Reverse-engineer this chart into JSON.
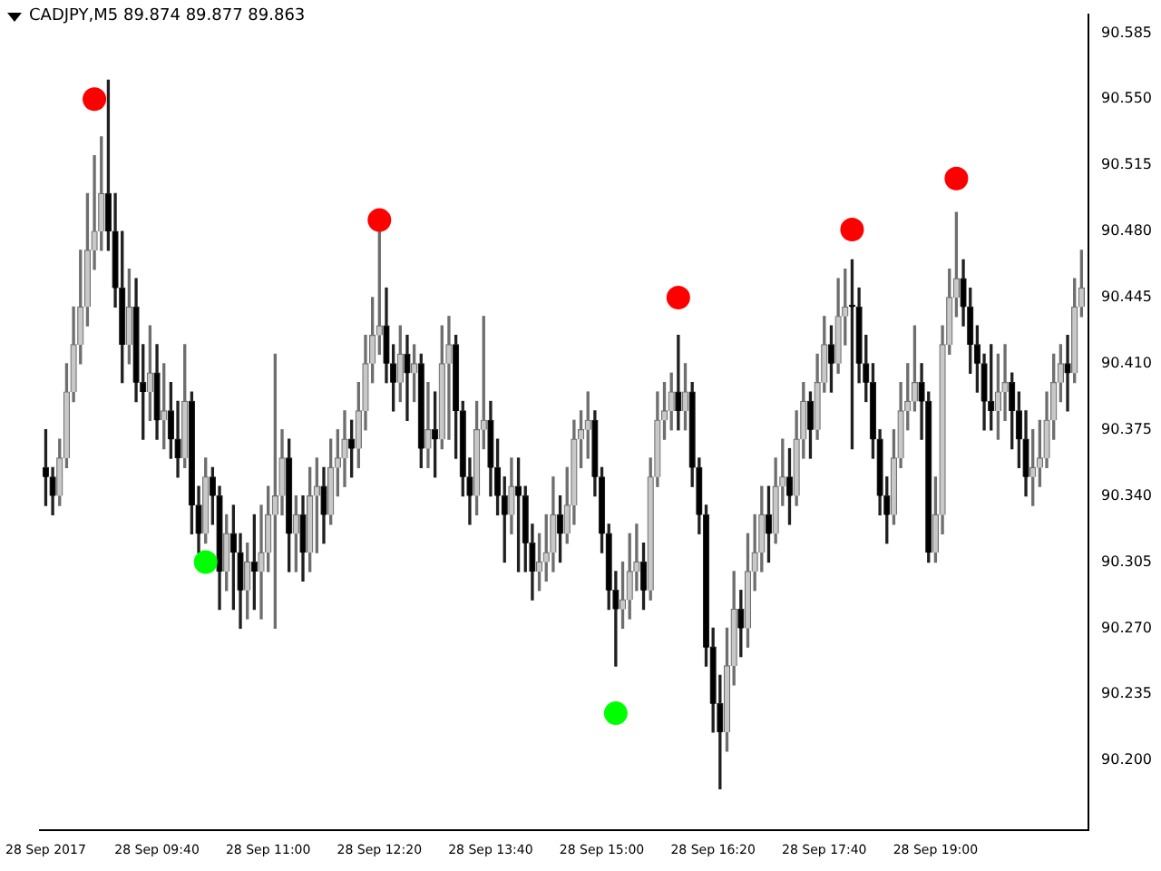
{
  "chart_data": {
    "type": "candlestick",
    "title": "CADJPY,M5  89.874 89.877 89.863",
    "x": [
      "2017-09-28T08:20",
      "2017-09-28T08:25",
      "2017-09-28T08:30",
      "2017-09-28T08:35",
      "2017-09-28T08:40",
      "2017-09-28T08:45",
      "2017-09-28T08:50",
      "2017-09-28T08:55",
      "2017-09-28T09:00",
      "2017-09-28T09:05",
      "2017-09-28T09:10",
      "2017-09-28T09:15",
      "2017-09-28T09:20",
      "2017-09-28T09:25",
      "2017-09-28T09:30",
      "2017-09-28T09:35",
      "2017-09-28T09:40",
      "2017-09-28T09:45",
      "2017-09-28T09:50",
      "2017-09-28T09:55",
      "2017-09-28T10:00",
      "2017-09-28T10:05",
      "2017-09-28T10:10",
      "2017-09-28T10:15",
      "2017-09-28T10:20",
      "2017-09-28T10:25",
      "2017-09-28T10:30",
      "2017-09-28T10:35",
      "2017-09-28T10:40",
      "2017-09-28T10:45",
      "2017-09-28T10:50",
      "2017-09-28T10:55",
      "2017-09-28T11:00",
      "2017-09-28T11:05",
      "2017-09-28T11:10",
      "2017-09-28T11:15",
      "2017-09-28T11:20",
      "2017-09-28T11:25",
      "2017-09-28T11:30",
      "2017-09-28T11:35",
      "2017-09-28T11:40",
      "2017-09-28T11:45",
      "2017-09-28T11:50",
      "2017-09-28T11:55",
      "2017-09-28T12:00",
      "2017-09-28T12:05",
      "2017-09-28T12:10",
      "2017-09-28T12:15",
      "2017-09-28T12:20",
      "2017-09-28T12:25",
      "2017-09-28T12:30",
      "2017-09-28T12:35",
      "2017-09-28T12:40",
      "2017-09-28T12:45",
      "2017-09-28T12:50",
      "2017-09-28T12:55",
      "2017-09-28T13:00",
      "2017-09-28T13:05",
      "2017-09-28T13:10",
      "2017-09-28T13:15",
      "2017-09-28T13:20",
      "2017-09-28T13:25",
      "2017-09-28T13:30",
      "2017-09-28T13:35",
      "2017-09-28T13:40",
      "2017-09-28T13:45",
      "2017-09-28T13:50",
      "2017-09-28T13:55",
      "2017-09-28T14:00",
      "2017-09-28T14:05",
      "2017-09-28T14:10",
      "2017-09-28T14:15",
      "2017-09-28T14:20",
      "2017-09-28T14:25",
      "2017-09-28T14:30",
      "2017-09-28T14:35",
      "2017-09-28T14:40",
      "2017-09-28T14:45",
      "2017-09-28T14:50",
      "2017-09-28T14:55",
      "2017-09-28T15:00",
      "2017-09-28T15:05",
      "2017-09-28T15:10",
      "2017-09-28T15:15",
      "2017-09-28T15:20",
      "2017-09-28T15:25",
      "2017-09-28T15:30",
      "2017-09-28T15:35",
      "2017-09-28T15:40",
      "2017-09-28T15:45",
      "2017-09-28T15:50",
      "2017-09-28T15:55",
      "2017-09-28T16:00",
      "2017-09-28T16:05",
      "2017-09-28T16:10",
      "2017-09-28T16:15",
      "2017-09-28T16:20",
      "2017-09-28T16:25",
      "2017-09-28T16:30",
      "2017-09-28T16:35",
      "2017-09-28T16:40",
      "2017-09-28T16:45",
      "2017-09-28T16:50",
      "2017-09-28T16:55",
      "2017-09-28T17:00",
      "2017-09-28T17:05",
      "2017-09-28T17:10",
      "2017-09-28T17:15",
      "2017-09-28T17:20",
      "2017-09-28T17:25",
      "2017-09-28T17:30",
      "2017-09-28T17:35",
      "2017-09-28T17:40",
      "2017-09-28T17:45",
      "2017-09-28T17:50",
      "2017-09-28T17:55",
      "2017-09-28T18:00",
      "2017-09-28T18:05",
      "2017-09-28T18:10",
      "2017-09-28T18:15",
      "2017-09-28T18:20",
      "2017-09-28T18:25",
      "2017-09-28T18:30",
      "2017-09-28T18:35",
      "2017-09-28T18:40",
      "2017-09-28T18:45",
      "2017-09-28T18:50",
      "2017-09-28T18:55",
      "2017-09-28T19:00",
      "2017-09-28T19:05",
      "2017-09-28T19:10",
      "2017-09-28T19:15",
      "2017-09-28T19:20",
      "2017-09-28T19:25",
      "2017-09-28T19:30",
      "2017-09-28T19:35",
      "2017-09-28T19:40",
      "2017-09-28T19:45",
      "2017-09-28T19:50",
      "2017-09-28T19:55",
      "2017-09-28T20:00",
      "2017-09-28T20:05",
      "2017-09-28T20:10",
      "2017-09-28T20:15",
      "2017-09-28T20:20",
      "2017-09-28T20:25",
      "2017-09-28T20:30",
      "2017-09-28T20:35",
      "2017-09-28T20:40",
      "2017-09-28T20:45"
    ],
    "ohlc": [
      [
        90.355,
        90.375,
        90.335,
        90.35
      ],
      [
        90.35,
        90.355,
        90.33,
        90.34
      ],
      [
        90.34,
        90.37,
        90.335,
        90.36
      ],
      [
        90.36,
        90.41,
        90.355,
        90.395
      ],
      [
        90.395,
        90.44,
        90.39,
        90.42
      ],
      [
        90.42,
        90.47,
        90.41,
        90.44
      ],
      [
        90.44,
        90.5,
        90.43,
        90.47
      ],
      [
        90.47,
        90.52,
        90.46,
        90.48
      ],
      [
        90.48,
        90.53,
        90.47,
        90.5
      ],
      [
        90.5,
        90.56,
        90.47,
        90.48
      ],
      [
        90.48,
        90.5,
        90.44,
        90.45
      ],
      [
        90.45,
        90.48,
        90.4,
        90.42
      ],
      [
        90.42,
        90.46,
        90.41,
        90.44
      ],
      [
        90.44,
        90.455,
        90.39,
        90.4
      ],
      [
        90.4,
        90.42,
        90.37,
        90.395
      ],
      [
        90.395,
        90.43,
        90.38,
        90.405
      ],
      [
        90.405,
        90.42,
        90.37,
        90.38
      ],
      [
        90.38,
        90.41,
        90.365,
        90.385
      ],
      [
        90.385,
        90.4,
        90.36,
        90.37
      ],
      [
        90.37,
        90.39,
        90.35,
        90.36
      ],
      [
        90.36,
        90.42,
        90.355,
        90.39
      ],
      [
        90.39,
        90.395,
        90.32,
        90.335
      ],
      [
        90.335,
        90.345,
        90.31,
        90.32
      ],
      [
        90.32,
        90.36,
        90.315,
        90.35
      ],
      [
        90.35,
        90.355,
        90.325,
        90.34
      ],
      [
        90.34,
        90.345,
        90.28,
        90.3
      ],
      [
        90.3,
        90.33,
        90.29,
        90.32
      ],
      [
        90.32,
        90.335,
        90.28,
        90.31
      ],
      [
        90.31,
        90.32,
        90.27,
        90.29
      ],
      [
        90.29,
        90.315,
        90.275,
        90.305
      ],
      [
        90.305,
        90.33,
        90.28,
        90.3
      ],
      [
        90.3,
        90.335,
        90.275,
        90.31
      ],
      [
        90.31,
        90.345,
        90.3,
        90.33
      ],
      [
        90.33,
        90.415,
        90.27,
        90.34
      ],
      [
        90.34,
        90.375,
        90.33,
        90.36
      ],
      [
        90.36,
        90.37,
        90.3,
        90.32
      ],
      [
        90.32,
        90.34,
        90.3,
        90.33
      ],
      [
        90.33,
        90.34,
        90.295,
        90.31
      ],
      [
        90.31,
        90.355,
        90.3,
        90.34
      ],
      [
        90.34,
        90.36,
        90.31,
        90.345
      ],
      [
        90.345,
        90.355,
        90.315,
        90.33
      ],
      [
        90.33,
        90.37,
        90.325,
        90.355
      ],
      [
        90.355,
        90.375,
        90.34,
        90.36
      ],
      [
        90.36,
        90.385,
        90.345,
        90.37
      ],
      [
        90.37,
        90.38,
        90.35,
        90.365
      ],
      [
        90.365,
        90.4,
        90.355,
        90.385
      ],
      [
        90.385,
        90.425,
        90.375,
        90.41
      ],
      [
        90.41,
        90.445,
        90.4,
        90.425
      ],
      [
        90.425,
        90.48,
        90.415,
        90.43
      ],
      [
        90.43,
        90.45,
        90.4,
        90.41
      ],
      [
        90.41,
        90.42,
        90.385,
        90.4
      ],
      [
        90.4,
        90.43,
        90.39,
        90.415
      ],
      [
        90.415,
        90.425,
        90.38,
        90.405
      ],
      [
        90.405,
        90.42,
        90.39,
        90.41
      ],
      [
        90.41,
        90.415,
        90.355,
        90.365
      ],
      [
        90.365,
        90.4,
        90.355,
        90.375
      ],
      [
        90.375,
        90.395,
        90.35,
        90.37
      ],
      [
        90.37,
        90.43,
        90.365,
        90.41
      ],
      [
        90.41,
        90.435,
        90.37,
        90.42
      ],
      [
        90.42,
        90.425,
        90.36,
        90.385
      ],
      [
        90.385,
        90.39,
        90.34,
        90.35
      ],
      [
        90.35,
        90.36,
        90.325,
        90.34
      ],
      [
        90.34,
        90.39,
        90.33,
        90.375
      ],
      [
        90.375,
        90.435,
        90.365,
        90.38
      ],
      [
        90.38,
        90.39,
        90.34,
        90.355
      ],
      [
        90.355,
        90.37,
        90.33,
        90.34
      ],
      [
        90.34,
        90.35,
        90.305,
        90.33
      ],
      [
        90.33,
        90.36,
        90.32,
        90.345
      ],
      [
        90.345,
        90.36,
        90.3,
        90.34
      ],
      [
        90.34,
        90.345,
        90.3,
        90.315
      ],
      [
        90.315,
        90.325,
        90.285,
        90.3
      ],
      [
        90.3,
        90.32,
        90.29,
        90.305
      ],
      [
        90.305,
        90.33,
        90.295,
        90.31
      ],
      [
        90.31,
        90.35,
        90.3,
        90.33
      ],
      [
        90.33,
        90.34,
        90.305,
        90.32
      ],
      [
        90.32,
        90.355,
        90.315,
        90.335
      ],
      [
        90.335,
        90.38,
        90.325,
        90.37
      ],
      [
        90.37,
        90.385,
        90.355,
        90.375
      ],
      [
        90.375,
        90.395,
        90.36,
        90.38
      ],
      [
        90.38,
        90.385,
        90.34,
        90.35
      ],
      [
        90.35,
        90.355,
        90.31,
        90.32
      ],
      [
        90.32,
        90.325,
        90.28,
        90.29
      ],
      [
        90.29,
        90.3,
        90.25,
        90.28
      ],
      [
        90.28,
        90.305,
        90.27,
        90.285
      ],
      [
        90.285,
        90.32,
        90.275,
        90.3
      ],
      [
        90.3,
        90.325,
        90.29,
        90.305
      ],
      [
        90.305,
        90.315,
        90.28,
        90.29
      ],
      [
        90.29,
        90.36,
        90.285,
        90.35
      ],
      [
        90.35,
        90.395,
        90.345,
        90.38
      ],
      [
        90.38,
        90.4,
        90.37,
        90.385
      ],
      [
        90.385,
        90.405,
        90.375,
        90.395
      ],
      [
        90.395,
        90.425,
        90.375,
        90.385
      ],
      [
        90.385,
        90.41,
        90.375,
        90.395
      ],
      [
        90.395,
        90.4,
        90.345,
        90.355
      ],
      [
        90.355,
        90.36,
        90.32,
        90.33
      ],
      [
        90.33,
        90.335,
        90.25,
        90.26
      ],
      [
        90.26,
        90.27,
        90.215,
        90.23
      ],
      [
        90.23,
        90.245,
        90.185,
        90.215
      ],
      [
        90.215,
        90.27,
        90.205,
        90.25
      ],
      [
        90.25,
        90.3,
        90.24,
        90.28
      ],
      [
        90.28,
        90.29,
        90.255,
        90.27
      ],
      [
        90.27,
        90.32,
        90.26,
        90.3
      ],
      [
        90.3,
        90.33,
        90.29,
        90.31
      ],
      [
        90.31,
        90.345,
        90.3,
        90.33
      ],
      [
        90.33,
        90.345,
        90.305,
        90.32
      ],
      [
        90.32,
        90.36,
        90.315,
        90.345
      ],
      [
        90.345,
        90.37,
        90.335,
        90.35
      ],
      [
        90.35,
        90.365,
        90.325,
        90.34
      ],
      [
        90.34,
        90.385,
        90.335,
        90.37
      ],
      [
        90.37,
        90.4,
        90.36,
        90.39
      ],
      [
        90.39,
        90.395,
        90.36,
        90.375
      ],
      [
        90.375,
        90.415,
        90.37,
        90.4
      ],
      [
        90.4,
        90.435,
        90.395,
        90.42
      ],
      [
        90.42,
        90.43,
        90.395,
        90.41
      ],
      [
        90.41,
        90.455,
        90.405,
        90.435
      ],
      [
        90.435,
        90.46,
        90.42,
        90.44
      ],
      [
        90.44,
        90.465,
        90.365,
        90.44
      ],
      [
        90.44,
        90.45,
        90.4,
        90.41
      ],
      [
        90.41,
        90.425,
        90.39,
        90.4
      ],
      [
        90.4,
        90.41,
        90.36,
        90.37
      ],
      [
        90.37,
        90.375,
        90.33,
        90.34
      ],
      [
        90.34,
        90.35,
        90.315,
        90.33
      ],
      [
        90.33,
        90.375,
        90.325,
        90.36
      ],
      [
        90.36,
        90.4,
        90.355,
        90.385
      ],
      [
        90.385,
        90.41,
        90.375,
        90.39
      ],
      [
        90.39,
        90.43,
        90.385,
        90.4
      ],
      [
        90.4,
        90.41,
        90.37,
        90.39
      ],
      [
        90.39,
        90.395,
        90.305,
        90.31
      ],
      [
        90.31,
        90.35,
        90.305,
        90.33
      ],
      [
        90.33,
        90.43,
        90.32,
        90.42
      ],
      [
        90.42,
        90.46,
        90.415,
        90.445
      ],
      [
        90.445,
        90.49,
        90.435,
        90.455
      ],
      [
        90.455,
        90.465,
        90.43,
        90.44
      ],
      [
        90.44,
        90.45,
        90.405,
        90.42
      ],
      [
        90.42,
        90.43,
        90.395,
        90.41
      ],
      [
        90.41,
        90.415,
        90.375,
        90.39
      ],
      [
        90.39,
        90.42,
        90.375,
        90.385
      ],
      [
        90.385,
        90.415,
        90.37,
        90.395
      ],
      [
        90.395,
        90.42,
        90.38,
        90.4
      ],
      [
        90.4,
        90.405,
        90.365,
        90.385
      ],
      [
        90.385,
        90.395,
        90.355,
        90.37
      ],
      [
        90.37,
        90.385,
        90.34,
        90.35
      ],
      [
        90.35,
        90.375,
        90.335,
        90.355
      ],
      [
        90.355,
        90.38,
        90.345,
        90.36
      ],
      [
        90.36,
        90.395,
        90.355,
        90.38
      ],
      [
        90.38,
        90.415,
        90.37,
        90.4
      ],
      [
        90.4,
        90.42,
        90.39,
        90.41
      ],
      [
        90.41,
        90.425,
        90.385,
        90.405
      ],
      [
        90.405,
        90.455,
        90.4,
        90.44
      ],
      [
        90.44,
        90.47,
        90.435,
        90.45
      ]
    ],
    "series": [
      {
        "type": "scatter",
        "color": "#ff0000",
        "x": [
          "2017-09-28T08:55",
          "2017-09-28T12:20",
          "2017-09-28T15:55",
          "2017-09-28T18:00",
          "2017-09-28T19:15"
        ],
        "values": [
          90.55,
          90.486,
          90.445,
          90.481,
          90.508
        ]
      },
      {
        "type": "scatter",
        "color": "#00ff00",
        "x": [
          "2017-09-28T10:15",
          "2017-09-28T15:10"
        ],
        "values": [
          90.305,
          90.225
        ]
      }
    ],
    "marker": "circle",
    "xlim": [
      "2017-09-28T08:16",
      "2017-09-28T20:50"
    ],
    "xticks": [
      {
        "value": "2017-09-28T08:20",
        "label": "28 Sep 2017"
      },
      {
        "value": "2017-09-28T09:40",
        "label": "28 Sep 09:40"
      },
      {
        "value": "2017-09-28T11:00",
        "label": "28 Sep 11:00"
      },
      {
        "value": "2017-09-28T12:20",
        "label": "28 Sep 12:20"
      },
      {
        "value": "2017-09-28T13:40",
        "label": "28 Sep 13:40"
      },
      {
        "value": "2017-09-28T15:00",
        "label": "28 Sep 15:00"
      },
      {
        "value": "2017-09-28T16:20",
        "label": "28 Sep 16:20"
      },
      {
        "value": "2017-09-28T17:40",
        "label": "28 Sep 17:40"
      },
      {
        "value": "2017-09-28T19:00",
        "label": "28 Sep 19:00"
      }
    ],
    "ylim": [
      90.163,
      90.595
    ],
    "yticks": [
      {
        "value": 90.2,
        "label": "90.200"
      },
      90.235,
      {
        "value": 90.27,
        "label": "90.270"
      },
      90.305,
      {
        "value": 90.34,
        "label": "90.340"
      },
      90.375,
      {
        "value": 90.41,
        "label": "90.410"
      },
      90.445,
      {
        "value": 90.48,
        "label": "90.480"
      },
      90.515,
      {
        "value": 90.55,
        "label": "90.550"
      },
      90.585
    ]
  }
}
